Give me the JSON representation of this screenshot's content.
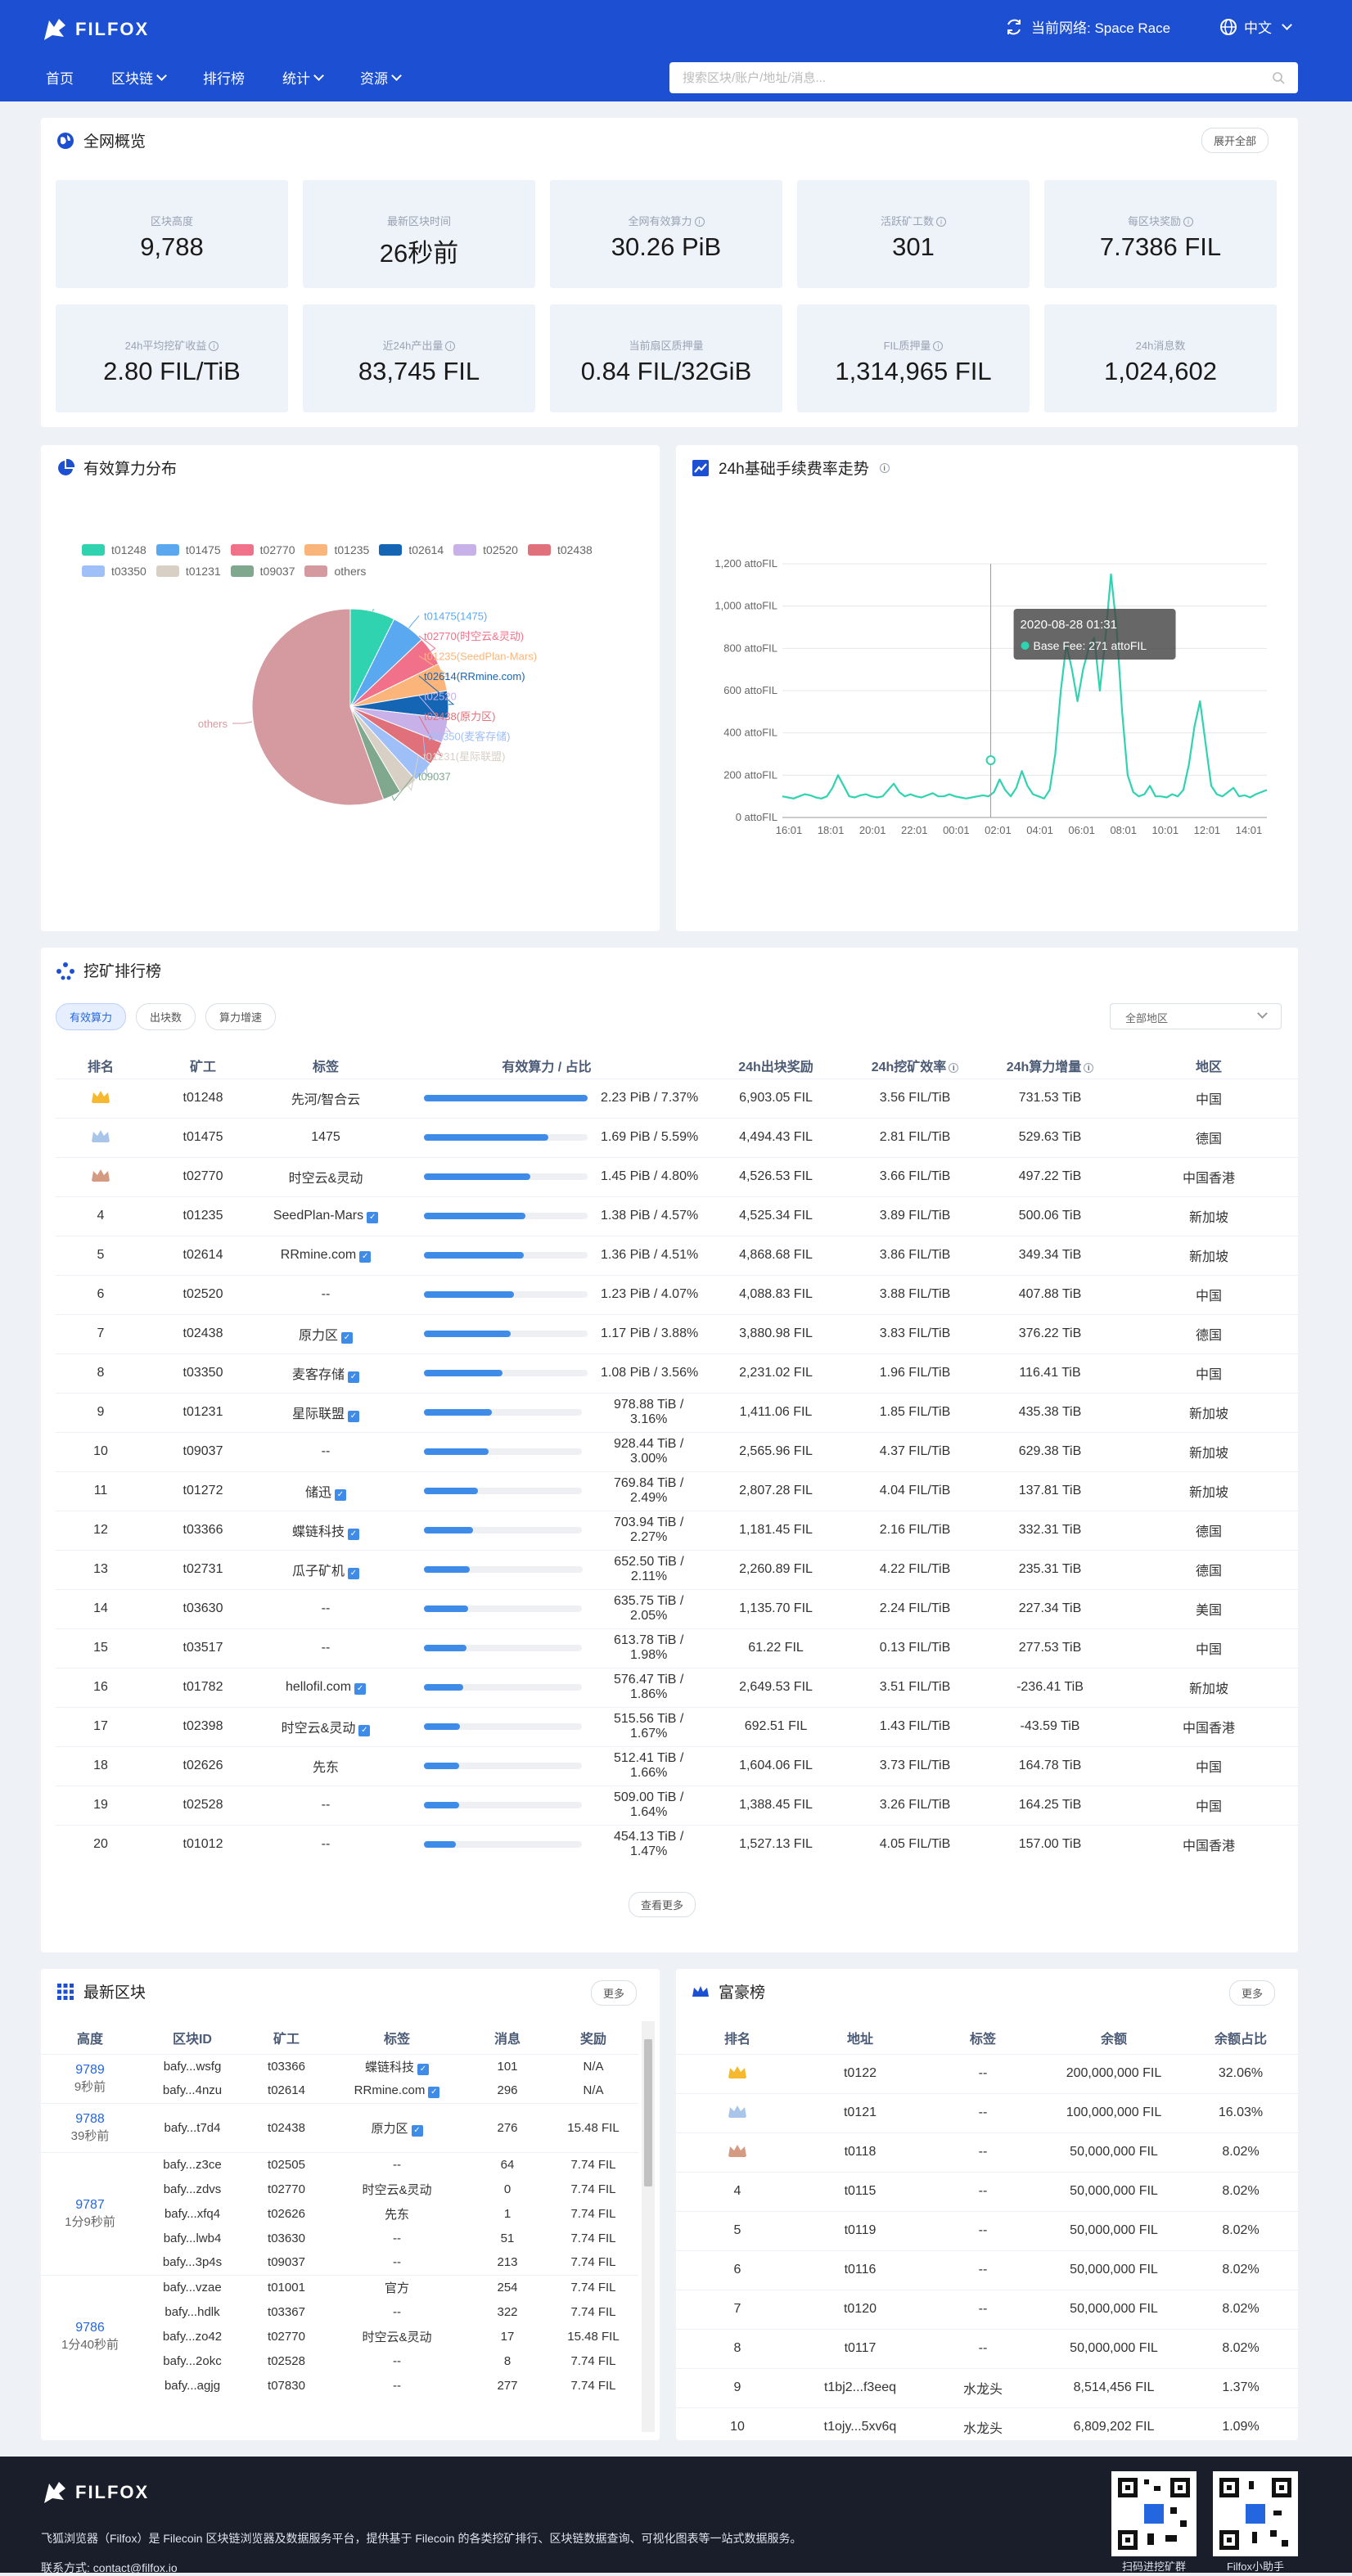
{
  "header": {
    "logo": "FILFOX",
    "network_label": "当前网络: Space Race",
    "language": "中文",
    "nav": [
      "首页",
      "区块链",
      "排行榜",
      "统计",
      "资源"
    ],
    "search_placeholder": "搜索区块/账户/地址/消息..."
  },
  "overview": {
    "title": "全网概览",
    "expand_label": "展开全部",
    "tiles": [
      {
        "label": "区块高度",
        "value": "9,788"
      },
      {
        "label": "最新区块时间",
        "value": "26秒前"
      },
      {
        "label": "全网有效算力",
        "value": "30.26 PiB"
      },
      {
        "label": "活跃矿工数",
        "value": "301"
      },
      {
        "label": "每区块奖励",
        "value": "7.7386 FIL"
      },
      {
        "label": "24h平均挖矿收益",
        "value": "2.80 FIL/TiB"
      },
      {
        "label": "近24h产出量",
        "value": "83,745 FIL"
      },
      {
        "label": "当前扇区质押量",
        "value": "0.84 FIL/32GiB"
      },
      {
        "label": "FIL质押量",
        "value": "1,314,965 FIL"
      },
      {
        "label": "24h消息数",
        "value": "1,024,602"
      }
    ]
  },
  "power_dist": {
    "title": "有效算力分布",
    "legend": [
      {
        "name": "t01248",
        "color": "#2fd3b0"
      },
      {
        "name": "t01475",
        "color": "#5aa9f0"
      },
      {
        "name": "t02770",
        "color": "#f2718a"
      },
      {
        "name": "t01235",
        "color": "#fbb57a"
      },
      {
        "name": "t02614",
        "color": "#1565b5"
      },
      {
        "name": "t02520",
        "color": "#c8b0e8"
      },
      {
        "name": "t02438",
        "color": "#e0707a"
      },
      {
        "name": "t03350",
        "color": "#9fbff8"
      },
      {
        "name": "t01231",
        "color": "#d8cfc5"
      },
      {
        "name": "t09037",
        "color": "#7fa88e"
      },
      {
        "name": "others",
        "color": "#d49aa0"
      }
    ],
    "slices": [
      {
        "label": "t01248(先河/智合云)",
        "value": 7.37
      },
      {
        "label": "t01475(1475)",
        "value": 5.59
      },
      {
        "label": "t02770(时空云&灵动)",
        "value": 4.8
      },
      {
        "label": "t01235(SeedPlan-Mars)",
        "value": 4.57
      },
      {
        "label": "t02614(RRmine.com)",
        "value": 4.51
      },
      {
        "label": "t02520",
        "value": 4.07
      },
      {
        "label": "t02438(原力区)",
        "value": 3.88
      },
      {
        "label": "t03350(麦客存储)",
        "value": 3.56
      },
      {
        "label": "t01231(星际联盟)",
        "value": 3.16
      },
      {
        "label": "t09037",
        "value": 3.0
      },
      {
        "label": "others",
        "value": 55.49
      }
    ]
  },
  "chart_data": {
    "type": "line",
    "title": "24h基础手续费率走势",
    "series": [
      {
        "name": "Base Fee",
        "color": "#2fd3b0"
      }
    ],
    "x_ticks": [
      "16:01",
      "18:01",
      "20:01",
      "22:01",
      "00:01",
      "02:01",
      "04:01",
      "06:01",
      "08:01",
      "10:01",
      "12:01",
      "14:01"
    ],
    "y_ticks": [
      "0 attoFIL",
      "200 attoFIL",
      "400 attoFIL",
      "600 attoFIL",
      "800 attoFIL",
      "1,000 attoFIL",
      "1,200 attoFIL"
    ],
    "ylim": [
      0,
      1200
    ],
    "values": [
      100,
      95,
      90,
      100,
      110,
      105,
      95,
      90,
      100,
      140,
      200,
      150,
      100,
      95,
      105,
      110,
      100,
      95,
      100,
      130,
      160,
      120,
      100,
      110,
      100,
      95,
      105,
      115,
      100,
      100,
      110,
      100,
      95,
      90,
      95,
      100,
      105,
      100,
      120,
      180,
      130,
      100,
      140,
      220,
      150,
      110,
      100,
      90,
      130,
      300,
      600,
      820,
      700,
      550,
      700,
      800,
      850,
      600,
      850,
      1150,
      900,
      500,
      200,
      120,
      100,
      110,
      150,
      100,
      100,
      95,
      110,
      100,
      130,
      250,
      430,
      550,
      350,
      150,
      110,
      100,
      120,
      140,
      100,
      105,
      95,
      110,
      120,
      130
    ],
    "grid": true,
    "tooltip": {
      "time": "2020-08-28 01:31",
      "label": "Base Fee: 271 attoFIL"
    }
  },
  "ranking": {
    "title": "挖矿排行榜",
    "tabs": [
      "有效算力",
      "出块数",
      "算力增速"
    ],
    "region": "全部地区",
    "columns": [
      "排名",
      "矿工",
      "标签",
      "有效算力 / 占比",
      "24h出块奖励",
      "24h挖矿效率",
      "24h算力增量",
      "地区"
    ],
    "rows": [
      {
        "rank": "1",
        "miner": "t01248",
        "tag": "先河/智合云",
        "v": false,
        "power": "2.23 PiB / 7.37%",
        "pct": 1.0,
        "reward": "6,903.05 FIL",
        "eff": "3.56 FIL/TiB",
        "inc": "731.53 TiB",
        "region": "中国"
      },
      {
        "rank": "2",
        "miner": "t01475",
        "tag": "1475",
        "v": false,
        "power": "1.69 PiB / 5.59%",
        "pct": 0.76,
        "reward": "4,494.43 FIL",
        "eff": "2.81 FIL/TiB",
        "inc": "529.63 TiB",
        "region": "德国"
      },
      {
        "rank": "3",
        "miner": "t02770",
        "tag": "时空云&灵动",
        "v": false,
        "power": "1.45 PiB / 4.80%",
        "pct": 0.65,
        "reward": "4,526.53 FIL",
        "eff": "3.66 FIL/TiB",
        "inc": "497.22 TiB",
        "region": "中国香港"
      },
      {
        "rank": "4",
        "miner": "t01235",
        "tag": "SeedPlan-Mars",
        "v": true,
        "power": "1.38 PiB / 4.57%",
        "pct": 0.62,
        "reward": "4,525.34 FIL",
        "eff": "3.89 FIL/TiB",
        "inc": "500.06 TiB",
        "region": "新加坡"
      },
      {
        "rank": "5",
        "miner": "t02614",
        "tag": "RRmine.com",
        "v": true,
        "power": "1.36 PiB / 4.51%",
        "pct": 0.61,
        "reward": "4,868.68 FIL",
        "eff": "3.86 FIL/TiB",
        "inc": "349.34 TiB",
        "region": "新加坡"
      },
      {
        "rank": "6",
        "miner": "t02520",
        "tag": "--",
        "v": false,
        "power": "1.23 PiB / 4.07%",
        "pct": 0.55,
        "reward": "4,088.83 FIL",
        "eff": "3.88 FIL/TiB",
        "inc": "407.88 TiB",
        "region": "中国"
      },
      {
        "rank": "7",
        "miner": "t02438",
        "tag": "原力区",
        "v": true,
        "power": "1.17 PiB / 3.88%",
        "pct": 0.53,
        "reward": "3,880.98 FIL",
        "eff": "3.83 FIL/TiB",
        "inc": "376.22 TiB",
        "region": "德国"
      },
      {
        "rank": "8",
        "miner": "t03350",
        "tag": "麦客存储",
        "v": true,
        "power": "1.08 PiB / 3.56%",
        "pct": 0.48,
        "reward": "2,231.02 FIL",
        "eff": "1.96 FIL/TiB",
        "inc": "116.41 TiB",
        "region": "中国"
      },
      {
        "rank": "9",
        "miner": "t01231",
        "tag": "星际联盟",
        "v": true,
        "power": "978.88 TiB / 3.16%",
        "pct": 0.43,
        "reward": "1,411.06 FIL",
        "eff": "1.85 FIL/TiB",
        "inc": "435.38 TiB",
        "region": "新加坡"
      },
      {
        "rank": "10",
        "miner": "t09037",
        "tag": "--",
        "v": false,
        "power": "928.44 TiB / 3.00%",
        "pct": 0.41,
        "reward": "2,565.96 FIL",
        "eff": "4.37 FIL/TiB",
        "inc": "629.38 TiB",
        "region": "新加坡"
      },
      {
        "rank": "11",
        "miner": "t01272",
        "tag": "储迅",
        "v": true,
        "power": "769.84 TiB / 2.49%",
        "pct": 0.34,
        "reward": "2,807.28 FIL",
        "eff": "4.04 FIL/TiB",
        "inc": "137.81 TiB",
        "region": "新加坡"
      },
      {
        "rank": "12",
        "miner": "t03366",
        "tag": "蝶链科技",
        "v": true,
        "power": "703.94 TiB / 2.27%",
        "pct": 0.31,
        "reward": "1,181.45 FIL",
        "eff": "2.16 FIL/TiB",
        "inc": "332.31 TiB",
        "region": "德国"
      },
      {
        "rank": "13",
        "miner": "t02731",
        "tag": "瓜子矿机",
        "v": true,
        "power": "652.50 TiB / 2.11%",
        "pct": 0.29,
        "reward": "2,260.89 FIL",
        "eff": "4.22 FIL/TiB",
        "inc": "235.31 TiB",
        "region": "德国"
      },
      {
        "rank": "14",
        "miner": "t03630",
        "tag": "--",
        "v": false,
        "power": "635.75 TiB / 2.05%",
        "pct": 0.28,
        "reward": "1,135.70 FIL",
        "eff": "2.24 FIL/TiB",
        "inc": "227.34 TiB",
        "region": "美国"
      },
      {
        "rank": "15",
        "miner": "t03517",
        "tag": "--",
        "v": false,
        "power": "613.78 TiB / 1.98%",
        "pct": 0.27,
        "reward": "61.22 FIL",
        "eff": "0.13 FIL/TiB",
        "inc": "277.53 TiB",
        "region": "中国"
      },
      {
        "rank": "16",
        "miner": "t01782",
        "tag": "hellofil.com",
        "v": true,
        "power": "576.47 TiB / 1.86%",
        "pct": 0.25,
        "reward": "2,649.53 FIL",
        "eff": "3.51 FIL/TiB",
        "inc": "-236.41 TiB",
        "region": "新加坡"
      },
      {
        "rank": "17",
        "miner": "t02398",
        "tag": "时空云&灵动",
        "v": true,
        "power": "515.56 TiB / 1.67%",
        "pct": 0.23,
        "reward": "692.51 FIL",
        "eff": "1.43 FIL/TiB",
        "inc": "-43.59 TiB",
        "region": "中国香港"
      },
      {
        "rank": "18",
        "miner": "t02626",
        "tag": "先东",
        "v": false,
        "power": "512.41 TiB / 1.66%",
        "pct": 0.22,
        "reward": "1,604.06 FIL",
        "eff": "3.73 FIL/TiB",
        "inc": "164.78 TiB",
        "region": "中国"
      },
      {
        "rank": "19",
        "miner": "t02528",
        "tag": "--",
        "v": false,
        "power": "509.00 TiB / 1.64%",
        "pct": 0.22,
        "reward": "1,388.45 FIL",
        "eff": "3.26 FIL/TiB",
        "inc": "164.25 TiB",
        "region": "中国"
      },
      {
        "rank": "20",
        "miner": "t01012",
        "tag": "--",
        "v": false,
        "power": "454.13 TiB / 1.47%",
        "pct": 0.2,
        "reward": "1,527.13 FIL",
        "eff": "4.05 FIL/TiB",
        "inc": "157.00 TiB",
        "region": "中国香港"
      }
    ],
    "more_label": "查看更多"
  },
  "latest_blocks": {
    "title": "最新区块",
    "more": "更多",
    "columns": [
      "高度",
      "区块ID",
      "矿工",
      "标签",
      "消息",
      "奖励"
    ],
    "groups": [
      {
        "height": "9789",
        "ago": "9秒前",
        "blocks": [
          {
            "id": "bafy...wsfg",
            "miner": "t03366",
            "tag": "蝶链科技",
            "v": true,
            "msgs": "101",
            "reward": "N/A"
          },
          {
            "id": "bafy...4nzu",
            "miner": "t02614",
            "tag": "RRmine.com",
            "v": true,
            "msgs": "296",
            "reward": "N/A"
          }
        ]
      },
      {
        "height": "9788",
        "ago": "39秒前",
        "blocks": [
          {
            "id": "bafy...t7d4",
            "miner": "t02438",
            "tag": "原力区",
            "v": true,
            "msgs": "276",
            "reward": "15.48 FIL"
          }
        ]
      },
      {
        "height": "9787",
        "ago": "1分9秒前",
        "blocks": [
          {
            "id": "bafy...z3ce",
            "miner": "t02505",
            "tag": "--",
            "v": false,
            "msgs": "64",
            "reward": "7.74 FIL"
          },
          {
            "id": "bafy...zdvs",
            "miner": "t02770",
            "tag": "时空云&灵动",
            "v": false,
            "msgs": "0",
            "reward": "7.74 FIL"
          },
          {
            "id": "bafy...xfq4",
            "miner": "t02626",
            "tag": "先东",
            "v": false,
            "msgs": "1",
            "reward": "7.74 FIL"
          },
          {
            "id": "bafy...lwb4",
            "miner": "t03630",
            "tag": "--",
            "v": false,
            "msgs": "51",
            "reward": "7.74 FIL"
          },
          {
            "id": "bafy...3p4s",
            "miner": "t09037",
            "tag": "--",
            "v": false,
            "msgs": "213",
            "reward": "7.74 FIL"
          }
        ]
      },
      {
        "height": "9786",
        "ago": "1分40秒前",
        "blocks": [
          {
            "id": "bafy...vzae",
            "miner": "t01001",
            "tag": "官方",
            "v": false,
            "msgs": "254",
            "reward": "7.74 FIL"
          },
          {
            "id": "bafy...hdlk",
            "miner": "t03367",
            "tag": "--",
            "v": false,
            "msgs": "322",
            "reward": "7.74 FIL"
          },
          {
            "id": "bafy...zo42",
            "miner": "t02770",
            "tag": "时空云&灵动",
            "v": false,
            "msgs": "17",
            "reward": "15.48 FIL"
          },
          {
            "id": "bafy...2okc",
            "miner": "t02528",
            "tag": "--",
            "v": false,
            "msgs": "8",
            "reward": "7.74 FIL"
          },
          {
            "id": "bafy...agjg",
            "miner": "t07830",
            "tag": "--",
            "v": false,
            "msgs": "277",
            "reward": "7.74 FIL"
          }
        ]
      }
    ]
  },
  "rich_list": {
    "title": "富豪榜",
    "more": "更多",
    "columns": [
      "排名",
      "地址",
      "标签",
      "余额",
      "余额占比"
    ],
    "rows": [
      {
        "rank": "1",
        "addr": "t0122",
        "tag": "--",
        "bal": "200,000,000 FIL",
        "pct": "32.06%"
      },
      {
        "rank": "2",
        "addr": "t0121",
        "tag": "--",
        "bal": "100,000,000 FIL",
        "pct": "16.03%"
      },
      {
        "rank": "3",
        "addr": "t0118",
        "tag": "--",
        "bal": "50,000,000 FIL",
        "pct": "8.02%"
      },
      {
        "rank": "4",
        "addr": "t0115",
        "tag": "--",
        "bal": "50,000,000 FIL",
        "pct": "8.02%"
      },
      {
        "rank": "5",
        "addr": "t0119",
        "tag": "--",
        "bal": "50,000,000 FIL",
        "pct": "8.02%"
      },
      {
        "rank": "6",
        "addr": "t0116",
        "tag": "--",
        "bal": "50,000,000 FIL",
        "pct": "8.02%"
      },
      {
        "rank": "7",
        "addr": "t0120",
        "tag": "--",
        "bal": "50,000,000 FIL",
        "pct": "8.02%"
      },
      {
        "rank": "8",
        "addr": "t0117",
        "tag": "--",
        "bal": "50,000,000 FIL",
        "pct": "8.02%"
      },
      {
        "rank": "9",
        "addr": "t1bj2...f3eeq",
        "tag": "水龙头",
        "bal": "8,514,456 FIL",
        "pct": "1.37%"
      },
      {
        "rank": "10",
        "addr": "t1ojy...5xv6q",
        "tag": "水龙头",
        "bal": "6,809,202 FIL",
        "pct": "1.09%"
      }
    ]
  },
  "footer": {
    "logo": "FILFOX",
    "desc": "飞狐浏览器（Filfox）是 Filecoin 区块链浏览器及数据服务平台，提供基于 Filecoin 的各类挖矿排行、区块链数据查询、可视化图表等一站式数据服务。",
    "contact": "联系方式: contact@filfox.io",
    "qr1": "扫码进挖矿群",
    "qr2": "Filfox小助手"
  },
  "colors": {
    "brand": "#1c4fd1",
    "accent": "#2fd3b0",
    "bar": "#3e8be8"
  }
}
